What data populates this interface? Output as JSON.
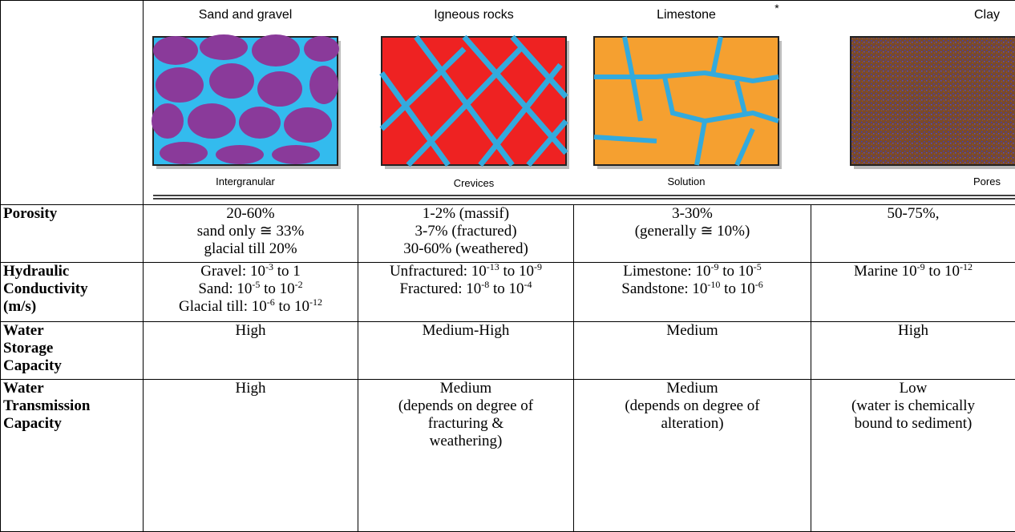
{
  "header": {
    "images": [
      {
        "title": "Sand and gravel",
        "caption": "Intergranular"
      },
      {
        "title": "Igneous rocks",
        "caption": "Crevices"
      },
      {
        "title": "Limestone",
        "caption": "Solution",
        "note": "*"
      },
      {
        "title": "Clay",
        "caption": "Pores"
      }
    ]
  },
  "table": {
    "rows": [
      {
        "label": [
          "Porosity"
        ],
        "cells": [
          [
            [
              "20-60%"
            ],
            [
              "sand only ≅ 33%"
            ],
            [
              "glacial till 20%"
            ]
          ],
          [
            [
              "1-2% (massif)"
            ],
            [
              "3-7% (fractured)"
            ],
            [
              "30-60% (weathered)"
            ]
          ],
          [
            [
              "3-30%"
            ],
            [
              "(generally ≅ 10%)"
            ]
          ],
          [
            [
              "50-75%,"
            ]
          ]
        ]
      },
      {
        "label": [
          "Hydraulic",
          "Conductivity",
          "(m/s)"
        ],
        "cells": [
          [
            [
              "Gravel: 10",
              "-3",
              " to 1"
            ],
            [
              "Sand: 10",
              "-5",
              " to 10",
              "-2"
            ],
            [
              "Glacial till: 10",
              "-6",
              " to 10",
              "-12"
            ]
          ],
          [
            [
              "Unfractured: 10",
              "-13",
              " to 10",
              "-9"
            ],
            [
              "Fractured: 10",
              "-8",
              " to 10",
              "-4"
            ]
          ],
          [
            [
              "Limestone: 10",
              "-9",
              " to 10",
              "-5"
            ],
            [
              "Sandstone: 10",
              "-10",
              " to 10",
              "-6"
            ]
          ],
          [
            [
              "Marine 10",
              "-9",
              " to 10",
              "-12"
            ]
          ]
        ]
      },
      {
        "label": [
          "Water",
          "Storage",
          "Capacity"
        ],
        "cells": [
          [
            [
              "High"
            ]
          ],
          [
            [
              "Medium-High"
            ]
          ],
          [
            [
              "Medium"
            ]
          ],
          [
            [
              "High"
            ]
          ]
        ]
      },
      {
        "label": [
          "Water",
          "Transmission",
          "Capacity"
        ],
        "cells": [
          [
            [
              "High"
            ]
          ],
          [
            [
              "Medium"
            ],
            [
              "(depends on degree of"
            ],
            [
              "fracturing &"
            ],
            [
              "weathering)"
            ]
          ],
          [
            [
              "Medium"
            ],
            [
              "(depends on degree of"
            ],
            [
              "alteration)"
            ]
          ],
          [
            [
              "Low"
            ],
            [
              "(water is chemically"
            ],
            [
              "bound to sediment)"
            ]
          ]
        ]
      }
    ]
  }
}
